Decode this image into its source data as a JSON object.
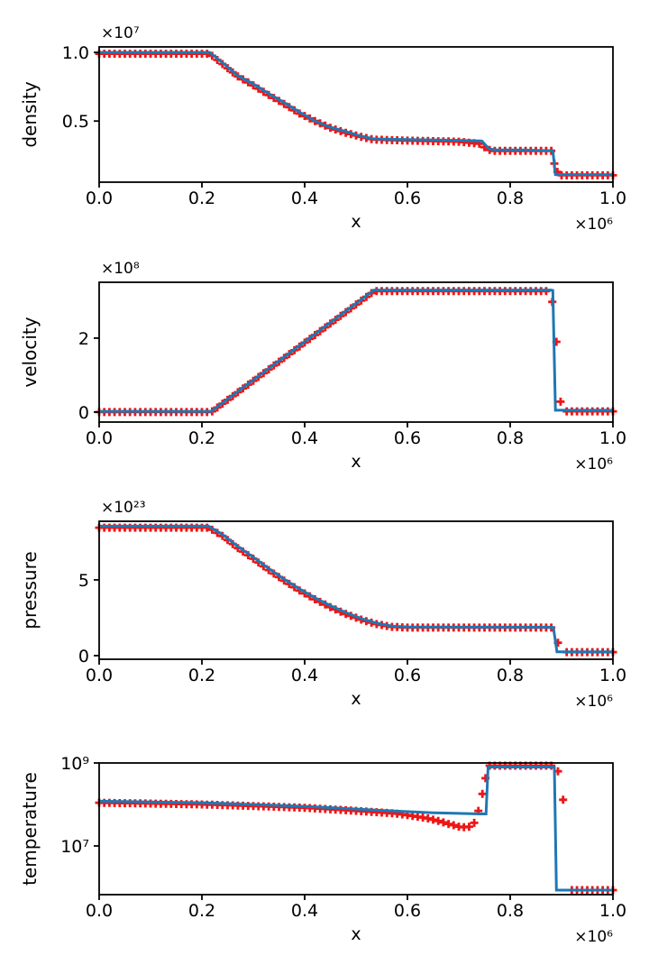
{
  "colors": {
    "line": "#1f77b4",
    "marker": "#ee1515",
    "axis": "#000000",
    "text": "#000000",
    "background": "#ffffff"
  },
  "chart_data": [
    {
      "type": "line",
      "name": "density",
      "ylabel": "density",
      "xlabel": "x",
      "y_offset_text": "×10⁷",
      "x_offset_text": "×10⁶",
      "yscale": "linear",
      "xlim": [
        0,
        1
      ],
      "ylim": [
        0.055,
        1.04
      ],
      "xticks": {
        "values": [
          0,
          0.2,
          0.4,
          0.6,
          0.8,
          1
        ],
        "labels": [
          "0.0",
          "0.2",
          "0.4",
          "0.6",
          "0.8",
          "1.0"
        ]
      },
      "yticks": {
        "values": [
          0.5,
          1.0
        ],
        "labels": [
          "0.5",
          "1.0"
        ]
      },
      "series": [
        {
          "name": "numerical-markers",
          "style": "plus_markers",
          "marker_step": 0.01,
          "segments": [
            {
              "points": [
                [
                  0,
                  0.99
                ],
                [
                  0.215,
                  0.99
                ],
                [
                  0.24,
                  0.915
                ],
                [
                  0.27,
                  0.825
                ],
                [
                  0.3,
                  0.76
                ],
                [
                  0.33,
                  0.69
                ],
                [
                  0.36,
                  0.625
                ],
                [
                  0.39,
                  0.555
                ],
                [
                  0.42,
                  0.5
                ],
                [
                  0.45,
                  0.45
                ],
                [
                  0.48,
                  0.415
                ],
                [
                  0.51,
                  0.385
                ],
                [
                  0.535,
                  0.365
                ],
                [
                  0.6,
                  0.358
                ],
                [
                  0.7,
                  0.35
                ],
                [
                  0.74,
                  0.335
                ]
              ]
            },
            {
              "points": [
                [
                  0.75,
                  0.31
                ],
                [
                  0.76,
                  0.29
                ],
                [
                  0.77,
                  0.283
                ],
                [
                  0.88,
                  0.283
                ]
              ]
            },
            {
              "points": [
                [
                  0.9,
                  0.105
                ],
                [
                  1.0,
                  0.105
                ]
              ]
            }
          ],
          "extra_points": [
            [
              0.886,
              0.19
            ],
            [
              0.892,
              0.13
            ]
          ]
        },
        {
          "name": "analytic-line",
          "style": "line",
          "points": [
            [
              0,
              1.0
            ],
            [
              0.215,
              1.0
            ],
            [
              0.24,
              0.925
            ],
            [
              0.27,
              0.83
            ],
            [
              0.3,
              0.77
            ],
            [
              0.33,
              0.7
            ],
            [
              0.36,
              0.635
            ],
            [
              0.39,
              0.565
            ],
            [
              0.42,
              0.5
            ],
            [
              0.45,
              0.455
            ],
            [
              0.48,
              0.425
            ],
            [
              0.51,
              0.39
            ],
            [
              0.535,
              0.37
            ],
            [
              0.6,
              0.365
            ],
            [
              0.7,
              0.36
            ],
            [
              0.745,
              0.355
            ],
            [
              0.758,
              0.3
            ],
            [
              0.77,
              0.29
            ],
            [
              0.82,
              0.29
            ],
            [
              0.87,
              0.285
            ],
            [
              0.883,
              0.285
            ],
            [
              0.888,
              0.11
            ],
            [
              1.0,
              0.11
            ]
          ]
        }
      ]
    },
    {
      "type": "line",
      "name": "velocity",
      "ylabel": "velocity",
      "xlabel": "x",
      "y_offset_text": "×10⁸",
      "x_offset_text": "×10⁶",
      "yscale": "linear",
      "xlim": [
        0,
        1
      ],
      "ylim": [
        -0.27,
        3.51
      ],
      "xticks": {
        "values": [
          0,
          0.2,
          0.4,
          0.6,
          0.8,
          1
        ],
        "labels": [
          "0.0",
          "0.2",
          "0.4",
          "0.6",
          "0.8",
          "1.0"
        ]
      },
      "yticks": {
        "values": [
          0,
          2
        ],
        "labels": [
          "0",
          "2"
        ]
      },
      "series": [
        {
          "name": "numerical-markers",
          "style": "plus_markers",
          "marker_step": 0.01,
          "segments": [
            {
              "points": [
                [
                  0,
                  0.0
                ],
                [
                  0.218,
                  0.0
                ],
                [
                  0.535,
                  3.27
                ],
                [
                  0.875,
                  3.27
                ]
              ]
            },
            {
              "points": [
                [
                  0.905,
                  0.02
                ],
                [
                  1.0,
                  0.02
                ]
              ]
            }
          ],
          "extra_points": [
            [
              0.882,
              2.98
            ],
            [
              0.89,
              1.9
            ],
            [
              0.898,
              0.28
            ]
          ]
        },
        {
          "name": "analytic-line",
          "style": "line",
          "points": [
            [
              0,
              0.02
            ],
            [
              0.218,
              0.02
            ],
            [
              0.535,
              3.3
            ],
            [
              0.879,
              3.3
            ],
            [
              0.883,
              3.29
            ],
            [
              0.888,
              0.05
            ],
            [
              1.0,
              0.05
            ]
          ]
        }
      ]
    },
    {
      "type": "line",
      "name": "pressure",
      "ylabel": "pressure",
      "xlabel": "x",
      "y_offset_text": "×10²³",
      "x_offset_text": "×10⁶",
      "yscale": "linear",
      "xlim": [
        0,
        1
      ],
      "ylim": [
        -0.24,
        8.87
      ],
      "xticks": {
        "values": [
          0,
          0.2,
          0.4,
          0.6,
          0.8,
          1
        ],
        "labels": [
          "0.0",
          "0.2",
          "0.4",
          "0.6",
          "0.8",
          "1.0"
        ]
      },
      "yticks": {
        "values": [
          0,
          5
        ],
        "labels": [
          "0",
          "5"
        ]
      },
      "series": [
        {
          "name": "numerical-markers",
          "style": "plus_markers",
          "marker_step": 0.01,
          "segments": [
            {
              "points": [
                [
                  0,
                  8.45
                ],
                [
                  0.213,
                  8.45
                ],
                [
                  0.24,
                  7.9
                ],
                [
                  0.27,
                  7.1
                ],
                [
                  0.3,
                  6.4
                ],
                [
                  0.33,
                  5.65
                ],
                [
                  0.36,
                  4.95
                ],
                [
                  0.39,
                  4.3
                ],
                [
                  0.42,
                  3.72
                ],
                [
                  0.45,
                  3.2
                ],
                [
                  0.48,
                  2.75
                ],
                [
                  0.51,
                  2.38
                ],
                [
                  0.54,
                  2.08
                ],
                [
                  0.57,
                  1.9
                ],
                [
                  0.6,
                  1.85
                ],
                [
                  0.88,
                  1.85
                ]
              ]
            },
            {
              "points": [
                [
                  0.903,
                  0.23
                ],
                [
                  1.0,
                  0.23
                ]
              ]
            }
          ],
          "extra_points": [
            [
              0.893,
              0.85
            ]
          ]
        },
        {
          "name": "analytic-line",
          "style": "line",
          "points": [
            [
              0,
              8.55
            ],
            [
              0.213,
              8.55
            ],
            [
              0.24,
              8.0
            ],
            [
              0.27,
              7.2
            ],
            [
              0.3,
              6.5
            ],
            [
              0.33,
              5.75
            ],
            [
              0.36,
              5.05
            ],
            [
              0.39,
              4.4
            ],
            [
              0.42,
              3.82
            ],
            [
              0.45,
              3.3
            ],
            [
              0.48,
              2.85
            ],
            [
              0.51,
              2.45
            ],
            [
              0.54,
              2.15
            ],
            [
              0.57,
              1.95
            ],
            [
              0.6,
              1.9
            ],
            [
              0.875,
              1.88
            ],
            [
              0.884,
              1.86
            ],
            [
              0.891,
              0.25
            ],
            [
              1.0,
              0.25
            ]
          ]
        }
      ]
    },
    {
      "type": "line",
      "name": "temperature",
      "ylabel": "temperature",
      "xlabel": "x",
      "y_offset_text": "",
      "x_offset_text": "×10⁶",
      "yscale": "log",
      "xlim": [
        0,
        1
      ],
      "ylim": [
        670000,
        1000000000
      ],
      "xticks": {
        "values": [
          0,
          0.2,
          0.4,
          0.6,
          0.8,
          1
        ],
        "labels": [
          "0.0",
          "0.2",
          "0.4",
          "0.6",
          "0.8",
          "1.0"
        ]
      },
      "yticks": {
        "values": [
          10000000,
          1000000000
        ],
        "labels": [
          "10⁷",
          "10⁹"
        ]
      },
      "series": [
        {
          "name": "numerical-markers",
          "style": "plus_markers",
          "marker_step": 0.01,
          "segments": [
            {
              "points": [
                [
                  0,
                  110000000
                ],
                [
                  0.2,
                  100000000
                ],
                [
                  0.4,
                  83000000
                ],
                [
                  0.5,
                  70000000
                ],
                [
                  0.58,
                  60000000
                ],
                [
                  0.64,
                  46000000
                ],
                [
                  0.68,
                  34000000
                ],
                [
                  0.705,
                  28000000
                ],
                [
                  0.72,
                  29000000
                ],
                [
                  0.73,
                  36000000
                ]
              ]
            },
            {
              "points": [
                [
                  0.758,
                  860000000
                ],
                [
                  0.884,
                  860000000
                ]
              ]
            },
            {
              "points": [
                [
                  0.915,
                  860000
                ],
                [
                  1.0,
                  860000
                ]
              ]
            }
          ],
          "extra_points": [
            [
              0.738,
              70000000
            ],
            [
              0.746,
              180000000
            ],
            [
              0.752,
              430000000
            ],
            [
              0.893,
              630000000
            ],
            [
              0.903,
              130000000
            ]
          ]
        },
        {
          "name": "analytic-line",
          "style": "line",
          "points": [
            [
              0,
              120000000
            ],
            [
              0.2,
              110000000
            ],
            [
              0.4,
              90000000
            ],
            [
              0.55,
              72000000
            ],
            [
              0.65,
              63000000
            ],
            [
              0.74,
              59000000
            ],
            [
              0.753,
              59000000
            ],
            [
              0.757,
              800000000
            ],
            [
              0.882,
              800000000
            ],
            [
              0.886,
              790000000
            ],
            [
              0.89,
              860000
            ],
            [
              1.0,
              860000
            ]
          ]
        }
      ]
    }
  ]
}
